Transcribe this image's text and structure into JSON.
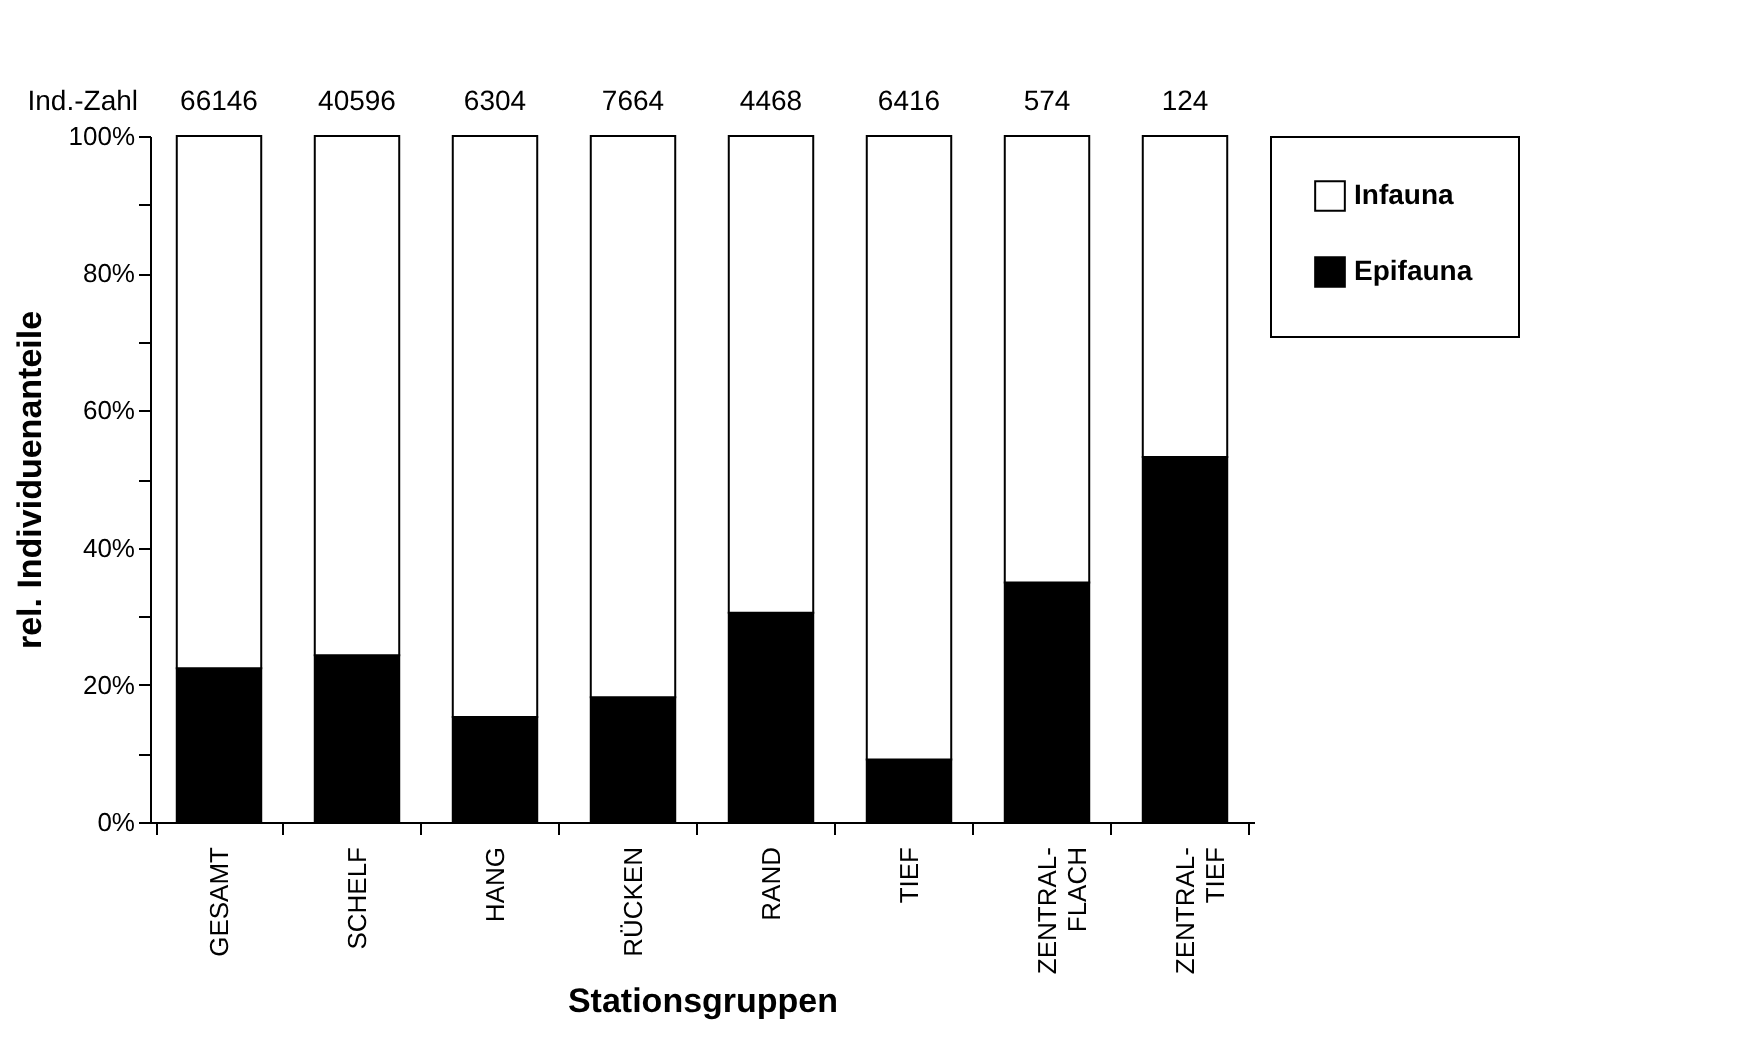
{
  "chart_data": {
    "type": "bar",
    "stacked": true,
    "xlabel": "Stationsgruppen",
    "ylabel": "rel. Individuenanteile",
    "categories": [
      "GESAMT",
      "SCHELF",
      "HANG",
      "RÜCKEN",
      "RAND",
      "TIEF",
      "ZENTRAL-FLACH",
      "ZENTRAL-TIEF"
    ],
    "series": [
      {
        "name": "Epifauna",
        "color": "#000000",
        "values": [
          22.4,
          24.3,
          15.3,
          18.2,
          30.5,
          9.1,
          34.9,
          53.2
        ]
      },
      {
        "name": "Infauna",
        "color": "#ffffff",
        "values": [
          77.6,
          75.7,
          84.7,
          81.8,
          69.5,
          90.9,
          65.1,
          46.8
        ]
      }
    ],
    "ylim": [
      0,
      100
    ],
    "yticks": [
      {
        "value": 0,
        "label": "0%"
      },
      {
        "value": 10,
        "label": null
      },
      {
        "value": 20,
        "label": "20%"
      },
      {
        "value": 30,
        "label": null
      },
      {
        "value": 40,
        "label": "40%"
      },
      {
        "value": 50,
        "label": null
      },
      {
        "value": 60,
        "label": "60%"
      },
      {
        "value": 70,
        "label": null
      },
      {
        "value": 80,
        "label": "80%"
      },
      {
        "value": 90,
        "label": null
      },
      {
        "value": 100,
        "label": "100%"
      }
    ],
    "annotations": [
      "Ind.-Zahl",
      "66146",
      "40596",
      "6304",
      "7664",
      "4468",
      "6416",
      "574",
      "124"
    ],
    "grid": false,
    "legend": "right"
  }
}
